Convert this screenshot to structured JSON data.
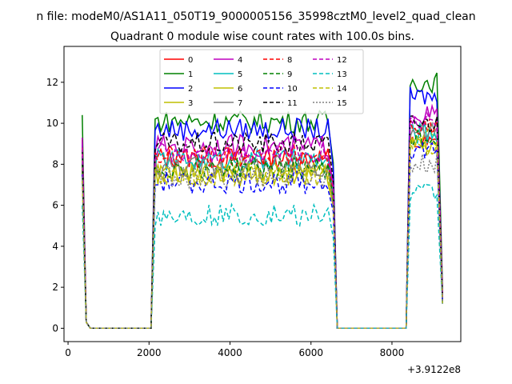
{
  "chart_data": {
    "type": "line",
    "suptitle": "n file: modeM0/AS1A11_050T19_9000005156_35998cztM0_level2_quad_clean",
    "title": "Quadrant 0 module wise count rates with 100.0s bins.",
    "xlabel": "",
    "ylabel": "",
    "x_offset_label": "+3.9122e8",
    "xlim": [
      -100,
      9700
    ],
    "ylim": [
      -0.65,
      13.75
    ],
    "x_ticks": [
      0,
      2000,
      4000,
      6000,
      8000
    ],
    "x_tick_labels": [
      "0",
      "2000",
      "4000",
      "6000",
      "8000"
    ],
    "y_ticks": [
      0,
      2,
      4,
      6,
      8,
      10,
      12
    ],
    "y_tick_labels": [
      "0",
      "2",
      "4",
      "6",
      "8",
      "10",
      "12"
    ],
    "grid": false,
    "legend_position": "top-center",
    "legend_columns": 4,
    "segments": [
      {
        "start": 350,
        "ramp_end": 550,
        "zero_end": 2050
      },
      {
        "start": 2050,
        "ramp_end": 2350,
        "zero_end": 6550
      },
      {
        "start": 6550,
        "ramp_end": 6650,
        "zero_end": 8350
      },
      {
        "start": 8350,
        "ramp_end": 8650,
        "zero_end": 9250
      }
    ],
    "series": [
      {
        "name": "0",
        "color": "#ff0000",
        "dash": "solid",
        "start_value": 9.2,
        "plateau1": 8.3,
        "plateau2": 9.0,
        "end_value": 1.4
      },
      {
        "name": "1",
        "color": "#008000",
        "dash": "solid",
        "start_value": 10.4,
        "plateau1": 10.1,
        "plateau2": 12.0,
        "end_value": 1.9
      },
      {
        "name": "2",
        "color": "#0000ff",
        "dash": "solid",
        "start_value": 9.0,
        "plateau1": 9.7,
        "plateau2": 11.3,
        "end_value": 1.6
      },
      {
        "name": "3",
        "color": "#bfbf00",
        "dash": "solid",
        "start_value": 7.8,
        "plateau1": 7.6,
        "plateau2": 9.3,
        "end_value": 1.3
      },
      {
        "name": "4",
        "color": "#bf00bf",
        "dash": "solid",
        "start_value": 9.3,
        "plateau1": 8.9,
        "plateau2": 10.4,
        "end_value": 1.5
      },
      {
        "name": "5",
        "color": "#00bfbf",
        "dash": "solid",
        "start_value": 8.4,
        "plateau1": 8.2,
        "plateau2": 9.5,
        "end_value": 1.4
      },
      {
        "name": "6",
        "color": "#bfbf00",
        "dash": "solid",
        "start_value": 7.6,
        "plateau1": 7.5,
        "plateau2": 9.0,
        "end_value": 1.2
      },
      {
        "name": "7",
        "color": "#808080",
        "dash": "solid",
        "start_value": 8.2,
        "plateau1": 7.9,
        "plateau2": 9.6,
        "end_value": 1.3
      },
      {
        "name": "8",
        "color": "#ff0000",
        "dash": "dashed",
        "start_value": 8.8,
        "plateau1": 8.4,
        "plateau2": 9.8,
        "end_value": 1.5
      },
      {
        "name": "9",
        "color": "#008000",
        "dash": "dashed",
        "start_value": 8.0,
        "plateau1": 7.8,
        "plateau2": 9.2,
        "end_value": 1.3
      },
      {
        "name": "10",
        "color": "#0000ff",
        "dash": "dashed",
        "start_value": 7.5,
        "plateau1": 7.1,
        "plateau2": 8.7,
        "end_value": 1.2
      },
      {
        "name": "11",
        "color": "#000000",
        "dash": "dashed",
        "start_value": 8.7,
        "plateau1": 9.0,
        "plateau2": 10.0,
        "end_value": 1.5
      },
      {
        "name": "12",
        "color": "#bf00bf",
        "dash": "dashed",
        "start_value": 9.1,
        "plateau1": 8.6,
        "plateau2": 10.2,
        "end_value": 1.5
      },
      {
        "name": "13",
        "color": "#00bfbf",
        "dash": "dashed",
        "start_value": 6.0,
        "plateau1": 5.5,
        "plateau2": 6.6,
        "end_value": 1.1
      },
      {
        "name": "14",
        "color": "#bfbf00",
        "dash": "dashed",
        "start_value": 7.2,
        "plateau1": 7.4,
        "plateau2": 8.9,
        "end_value": 1.2
      },
      {
        "name": "15",
        "color": "#808080",
        "dash": "dotted",
        "start_value": 7.4,
        "plateau1": 7.4,
        "plateau2": 8.0,
        "end_value": 1.2
      }
    ]
  }
}
